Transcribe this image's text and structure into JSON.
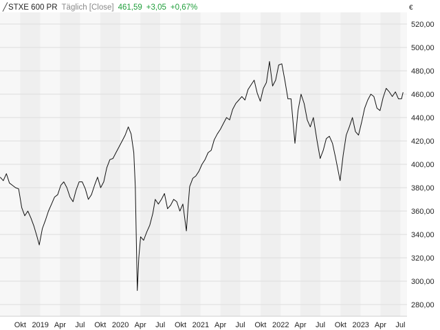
{
  "legend": {
    "icon": "line-chart-icon",
    "symbol": "STXE 600 PR",
    "period": "Täglich [Close]",
    "last": "461,59",
    "change_abs": "+3,05",
    "change_pct": "+0,67%",
    "positive_color": "#1f9e3a"
  },
  "chart_data": {
    "type": "line",
    "title": "",
    "currency_label": "€",
    "x_start": "2018-07-01",
    "x_end": "2023-07-31",
    "ylim": [
      270,
      530
    ],
    "y_ticks": [
      280,
      300,
      320,
      340,
      360,
      380,
      400,
      420,
      440,
      460,
      480,
      500,
      520
    ],
    "y_tick_labels": [
      "280,00",
      "300,00",
      "320,00",
      "340,00",
      "360,00",
      "380,00",
      "400,00",
      "420,00",
      "440,00",
      "460,00",
      "480,00",
      "500,00",
      "520,00"
    ],
    "x_ticks": [
      {
        "label": "Okt",
        "date": "2018-10-01"
      },
      {
        "label": "2019",
        "date": "2019-01-01"
      },
      {
        "label": "Apr",
        "date": "2019-04-01"
      },
      {
        "label": "Jul",
        "date": "2019-07-01"
      },
      {
        "label": "Okt",
        "date": "2019-10-01"
      },
      {
        "label": "2020",
        "date": "2020-01-01"
      },
      {
        "label": "Apr",
        "date": "2020-04-01"
      },
      {
        "label": "Jul",
        "date": "2020-07-01"
      },
      {
        "label": "Okt",
        "date": "2020-10-01"
      },
      {
        "label": "2021",
        "date": "2021-01-01"
      },
      {
        "label": "Apr",
        "date": "2021-04-01"
      },
      {
        "label": "Jul",
        "date": "2021-07-01"
      },
      {
        "label": "Okt",
        "date": "2021-10-01"
      },
      {
        "label": "2022",
        "date": "2022-01-01"
      },
      {
        "label": "Apr",
        "date": "2022-04-01"
      },
      {
        "label": "Jul",
        "date": "2022-07-01"
      },
      {
        "label": "Okt",
        "date": "2022-10-01"
      },
      {
        "label": "2023",
        "date": "2023-01-01"
      },
      {
        "label": "Apr",
        "date": "2023-04-01"
      },
      {
        "label": "Jul",
        "date": "2023-07-01"
      }
    ],
    "grid": true,
    "line_color": "#111111",
    "series": [
      {
        "x": [
          "2018-07-02",
          "2018-07-16",
          "2018-07-30",
          "2018-08-13",
          "2018-08-27",
          "2018-09-10",
          "2018-09-24",
          "2018-10-08",
          "2018-10-22",
          "2018-11-05",
          "2018-11-19",
          "2018-12-03",
          "2018-12-17",
          "2018-12-27",
          "2019-01-10",
          "2019-01-24",
          "2019-02-07",
          "2019-02-21",
          "2019-03-07",
          "2019-03-21",
          "2019-04-04",
          "2019-04-18",
          "2019-05-02",
          "2019-05-16",
          "2019-05-30",
          "2019-06-13",
          "2019-06-27",
          "2019-07-11",
          "2019-07-25",
          "2019-08-08",
          "2019-08-22",
          "2019-09-05",
          "2019-09-19",
          "2019-10-03",
          "2019-10-17",
          "2019-10-31",
          "2019-11-14",
          "2019-11-28",
          "2019-12-12",
          "2019-12-26",
          "2020-01-09",
          "2020-01-23",
          "2020-02-06",
          "2020-02-19",
          "2020-03-02",
          "2020-03-09",
          "2020-03-18",
          "2020-03-25",
          "2020-04-02",
          "2020-04-16",
          "2020-04-30",
          "2020-05-14",
          "2020-05-28",
          "2020-06-08",
          "2020-06-22",
          "2020-07-06",
          "2020-07-20",
          "2020-08-03",
          "2020-08-17",
          "2020-08-31",
          "2020-09-14",
          "2020-09-28",
          "2020-10-12",
          "2020-10-28",
          "2020-11-05",
          "2020-11-12",
          "2020-11-26",
          "2020-12-10",
          "2020-12-24",
          "2021-01-07",
          "2021-01-21",
          "2021-02-04",
          "2021-02-18",
          "2021-03-04",
          "2021-03-18",
          "2021-04-01",
          "2021-04-15",
          "2021-04-29",
          "2021-05-13",
          "2021-05-27",
          "2021-06-10",
          "2021-06-24",
          "2021-07-08",
          "2021-07-22",
          "2021-08-05",
          "2021-08-19",
          "2021-09-02",
          "2021-09-16",
          "2021-09-30",
          "2021-10-14",
          "2021-10-28",
          "2021-11-11",
          "2021-11-25",
          "2021-12-09",
          "2021-12-23",
          "2022-01-06",
          "2022-01-20",
          "2022-02-03",
          "2022-02-17",
          "2022-03-07",
          "2022-03-21",
          "2022-04-04",
          "2022-04-18",
          "2022-05-02",
          "2022-05-16",
          "2022-05-30",
          "2022-06-16",
          "2022-06-30",
          "2022-07-14",
          "2022-07-28",
          "2022-08-11",
          "2022-08-25",
          "2022-09-08",
          "2022-09-29",
          "2022-10-13",
          "2022-10-27",
          "2022-11-10",
          "2022-11-24",
          "2022-12-08",
          "2022-12-22",
          "2023-01-05",
          "2023-01-19",
          "2023-02-02",
          "2023-02-16",
          "2023-03-02",
          "2023-03-16",
          "2023-03-30",
          "2023-04-13",
          "2023-04-27",
          "2023-05-11",
          "2023-05-25",
          "2023-06-08",
          "2023-06-22",
          "2023-07-06",
          "2023-07-13"
        ],
        "y": [
          389,
          386,
          392,
          384,
          382,
          380,
          379,
          363,
          356,
          360,
          354,
          347,
          338,
          331,
          345,
          352,
          360,
          366,
          372,
          374,
          382,
          385,
          380,
          372,
          368,
          378,
          385,
          385,
          379,
          370,
          374,
          382,
          389,
          380,
          385,
          397,
          404,
          405,
          410,
          415,
          420,
          425,
          432,
          426,
          410,
          381,
          292,
          320,
          338,
          335,
          342,
          348,
          358,
          370,
          366,
          370,
          375,
          362,
          365,
          370,
          368,
          360,
          366,
          343,
          365,
          381,
          388,
          390,
          394,
          400,
          404,
          410,
          412,
          421,
          426,
          430,
          435,
          440,
          438,
          447,
          452,
          455,
          458,
          455,
          464,
          468,
          472,
          461,
          454,
          465,
          470,
          488,
          467,
          472,
          485,
          486,
          472,
          456,
          456,
          418,
          446,
          460,
          452,
          438,
          432,
          440,
          420,
          405,
          412,
          422,
          424,
          418,
          406,
          386,
          408,
          425,
          432,
          440,
          428,
          425,
          436,
          448,
          455,
          460,
          458,
          448,
          446,
          457,
          465,
          462,
          458,
          462,
          456,
          456,
          461.59
        ]
      }
    ]
  }
}
